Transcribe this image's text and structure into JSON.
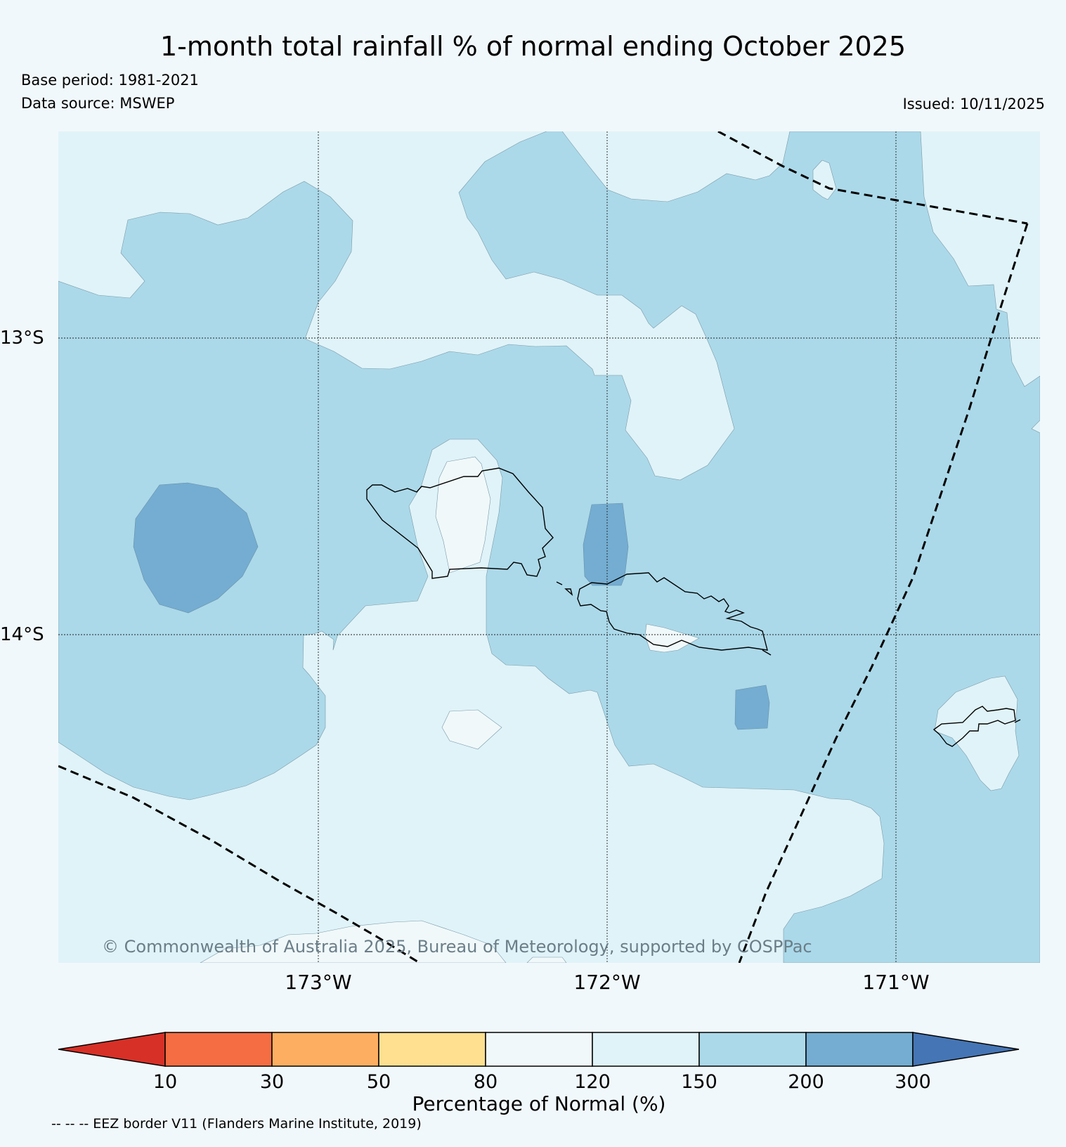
{
  "header": {
    "title": "1-month total rainfall % of normal ending October 2025",
    "base_period": "Base period: 1981-2021",
    "data_source": "Data source: MSWEP",
    "issued": "Issued: 10/11/2025"
  },
  "map": {
    "lat_labels": [
      "13°S",
      "14°S"
    ],
    "lon_labels": [
      "173°W",
      "172°W",
      "171°W"
    ],
    "copyright": "© Commonwealth of Australia 2025, Bureau of Meteorology, supported by COSPPac"
  },
  "colorbar": {
    "label": "Percentage of Normal (%)",
    "ticks": [
      "10",
      "30",
      "50",
      "80",
      "120",
      "150",
      "200",
      "300"
    ],
    "colors": [
      "#d73027",
      "#f46d43",
      "#fdae61",
      "#fee090",
      "#f0f8fa",
      "#e0f3f8",
      "#abd9e9",
      "#74add1",
      "#4575b4"
    ]
  },
  "footer": {
    "eez_note": "-- -- -- EEZ border V11 (Flanders Marine Institute, 2019)"
  }
}
